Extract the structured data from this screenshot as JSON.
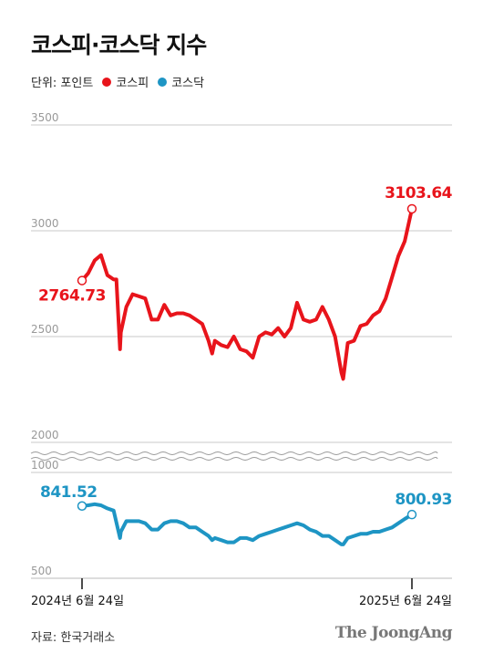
{
  "title": "코스피·코스닥 지수",
  "legend": {
    "unit": "단위: 포인트",
    "items": [
      {
        "label": "코스피",
        "color": "#e8141b"
      },
      {
        "label": "코스닥",
        "color": "#1e95c4"
      }
    ]
  },
  "source": "자료: 한국거래소",
  "brand": "The JoongAng",
  "chart_data": [
    {
      "type": "line",
      "series": [
        {
          "name": "코스피",
          "color": "#e8141b",
          "x": [
            "2024-06-24",
            "2024-07-01",
            "2024-07-08",
            "2024-07-15",
            "2024-07-22",
            "2024-07-29",
            "2024-08-01",
            "2024-08-05",
            "2024-08-06",
            "2024-08-12",
            "2024-08-19",
            "2024-08-26",
            "2024-09-02",
            "2024-09-09",
            "2024-09-16",
            "2024-09-23",
            "2024-09-30",
            "2024-10-07",
            "2024-10-14",
            "2024-10-21",
            "2024-10-28",
            "2024-11-04",
            "2024-11-11",
            "2024-11-15",
            "2024-11-18",
            "2024-11-25",
            "2024-12-02",
            "2024-12-09",
            "2024-12-16",
            "2024-12-23",
            "2024-12-30",
            "2025-01-06",
            "2025-01-13",
            "2025-01-20",
            "2025-01-27",
            "2025-02-03",
            "2025-02-10",
            "2025-02-17",
            "2025-02-24",
            "2025-03-03",
            "2025-03-10",
            "2025-03-17",
            "2025-03-24",
            "2025-03-31",
            "2025-04-07",
            "2025-04-09",
            "2025-04-14",
            "2025-04-21",
            "2025-04-28",
            "2025-05-05",
            "2025-05-12",
            "2025-05-19",
            "2025-05-26",
            "2025-06-02",
            "2025-06-09",
            "2025-06-16",
            "2025-06-24"
          ],
          "values": [
            2764.73,
            2800,
            2860,
            2885,
            2790,
            2770,
            2770,
            2440,
            2520,
            2640,
            2700,
            2690,
            2680,
            2580,
            2580,
            2650,
            2600,
            2610,
            2610,
            2600,
            2580,
            2560,
            2480,
            2420,
            2480,
            2460,
            2450,
            2500,
            2440,
            2430,
            2400,
            2500,
            2520,
            2510,
            2540,
            2500,
            2540,
            2660,
            2580,
            2570,
            2580,
            2640,
            2580,
            2500,
            2330,
            2300,
            2470,
            2480,
            2550,
            2560,
            2600,
            2620,
            2680,
            2780,
            2880,
            2950,
            3103.64
          ]
        }
      ],
      "ylim": [
        2000,
        3500
      ],
      "yticks": [
        3500,
        3000,
        2500,
        2000
      ],
      "annotations": [
        {
          "label": "2764.73",
          "x": "2024-06-24",
          "y": 2764.73,
          "anchor": "left"
        },
        {
          "label": "3103.64",
          "x": "2025-06-24",
          "y": 3103.64,
          "anchor": "right"
        }
      ]
    },
    {
      "type": "line",
      "series": [
        {
          "name": "코스닥",
          "color": "#1e95c4",
          "x": [
            "2024-06-24",
            "2024-07-01",
            "2024-07-08",
            "2024-07-15",
            "2024-07-22",
            "2024-07-29",
            "2024-08-05",
            "2024-08-06",
            "2024-08-12",
            "2024-08-19",
            "2024-08-26",
            "2024-09-02",
            "2024-09-09",
            "2024-09-16",
            "2024-09-23",
            "2024-09-30",
            "2024-10-07",
            "2024-10-14",
            "2024-10-21",
            "2024-10-28",
            "2024-11-04",
            "2024-11-11",
            "2024-11-15",
            "2024-11-18",
            "2024-11-25",
            "2024-12-02",
            "2024-12-09",
            "2024-12-16",
            "2024-12-23",
            "2024-12-30",
            "2025-01-06",
            "2025-01-13",
            "2025-01-20",
            "2025-01-27",
            "2025-02-03",
            "2025-02-10",
            "2025-02-17",
            "2025-02-24",
            "2025-03-03",
            "2025-03-10",
            "2025-03-17",
            "2025-03-24",
            "2025-03-31",
            "2025-04-07",
            "2025-04-09",
            "2025-04-14",
            "2025-04-21",
            "2025-04-28",
            "2025-05-05",
            "2025-05-12",
            "2025-05-19",
            "2025-05-26",
            "2025-06-02",
            "2025-06-09",
            "2025-06-16",
            "2025-06-24"
          ],
          "values": [
            841.52,
            845,
            850,
            845,
            830,
            820,
            690,
            720,
            770,
            770,
            770,
            760,
            730,
            730,
            760,
            770,
            770,
            760,
            740,
            740,
            720,
            700,
            680,
            690,
            680,
            670,
            670,
            690,
            690,
            680,
            700,
            710,
            720,
            730,
            740,
            750,
            760,
            750,
            730,
            720,
            700,
            700,
            680,
            660,
            660,
            690,
            700,
            710,
            710,
            720,
            720,
            730,
            740,
            760,
            780,
            800.93
          ]
        }
      ],
      "ylim": [
        500,
        1000
      ],
      "yticks": [
        1000,
        500
      ],
      "annotations": [
        {
          "label": "841.52",
          "x": "2024-06-24",
          "y": 841.52,
          "anchor": "left"
        },
        {
          "label": "800.93",
          "x": "2025-06-24",
          "y": 800.93,
          "anchor": "right"
        }
      ]
    }
  ],
  "x_axis": {
    "start_label": "2024년 6월 24일",
    "end_label": "2025년 6월 24일"
  }
}
